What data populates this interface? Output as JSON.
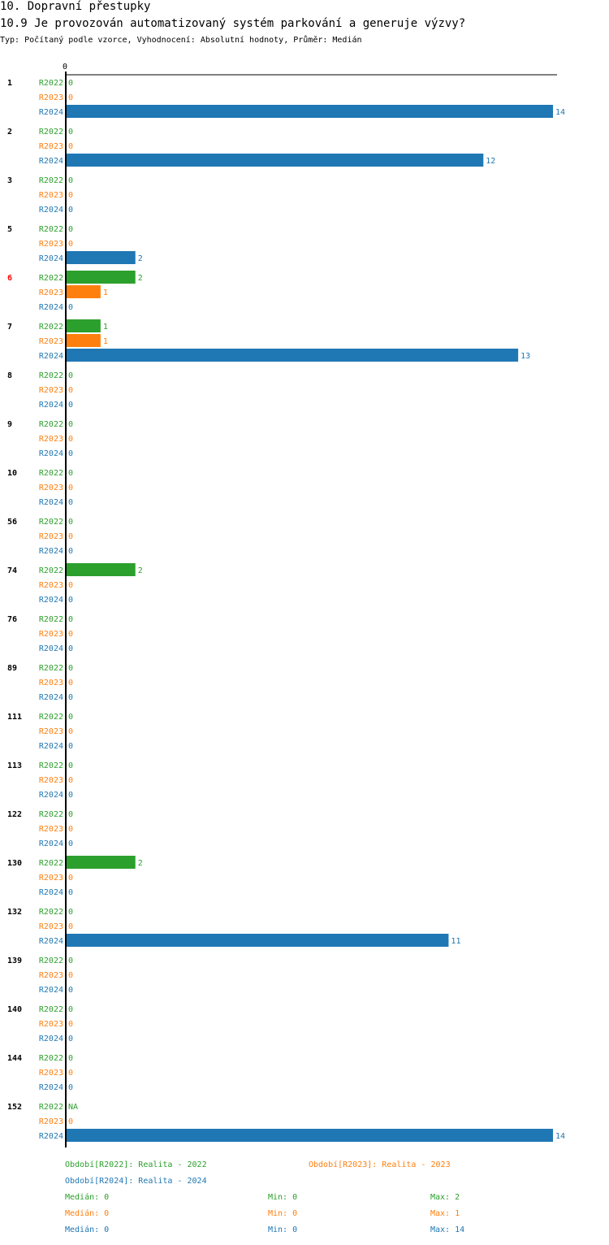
{
  "header": {
    "section": "10. Dopravní přestupky",
    "question": "10.9 Je provozován automatizovaný systém parkování a generuje výzvy?",
    "meta": "Typ: Počítaný podle vzorce, Vyhodnocení: Absolutní hodnoty, Průměr: Medián"
  },
  "chart_data": {
    "type": "bar",
    "orientation": "horizontal",
    "x_tick_labels": [
      "0"
    ],
    "xlim": [
      0,
      14
    ],
    "series_colors": {
      "R2022": "#2ca02c",
      "R2023": "#ff7f0e",
      "R2024": "#1f77b4"
    },
    "highlight_color": "#ff0000",
    "categories": [
      "1",
      "2",
      "3",
      "5",
      "6",
      "7",
      "8",
      "9",
      "10",
      "56",
      "74",
      "76",
      "89",
      "111",
      "113",
      "122",
      "130",
      "132",
      "139",
      "140",
      "144",
      "152"
    ],
    "highlighted_categories": [
      "6"
    ],
    "series": [
      {
        "name": "R2022",
        "values": [
          0,
          0,
          0,
          0,
          2,
          1,
          0,
          0,
          0,
          0,
          2,
          0,
          0,
          0,
          0,
          0,
          2,
          0,
          0,
          0,
          0,
          "NA"
        ]
      },
      {
        "name": "R2023",
        "values": [
          0,
          0,
          0,
          0,
          1,
          1,
          0,
          0,
          0,
          0,
          0,
          0,
          0,
          0,
          0,
          0,
          0,
          0,
          0,
          0,
          0,
          0
        ]
      },
      {
        "name": "R2024",
        "values": [
          14,
          12,
          0,
          2,
          0,
          13,
          0,
          0,
          0,
          0,
          0,
          0,
          0,
          0,
          0,
          0,
          0,
          11,
          0,
          0,
          0,
          14
        ]
      }
    ]
  },
  "legend": {
    "periods": [
      {
        "text": "Období[R2022]: Realita - 2022",
        "color": "#2ca02c"
      },
      {
        "text": "Období[R2023]: Realita - 2023",
        "color": "#ff7f0e"
      },
      {
        "text": "Období[R2024]: Realita - 2024",
        "color": "#1f77b4"
      }
    ],
    "stats": [
      {
        "median": "Medián: 0",
        "min": "Min: 0",
        "max": "Max: 2",
        "color": "#2ca02c"
      },
      {
        "median": "Medián: 0",
        "min": "Min: 0",
        "max": "Max: 1",
        "color": "#ff7f0e"
      },
      {
        "median": "Medián: 0",
        "min": "Min: 0",
        "max": "Max: 14",
        "color": "#1f77b4"
      }
    ]
  }
}
